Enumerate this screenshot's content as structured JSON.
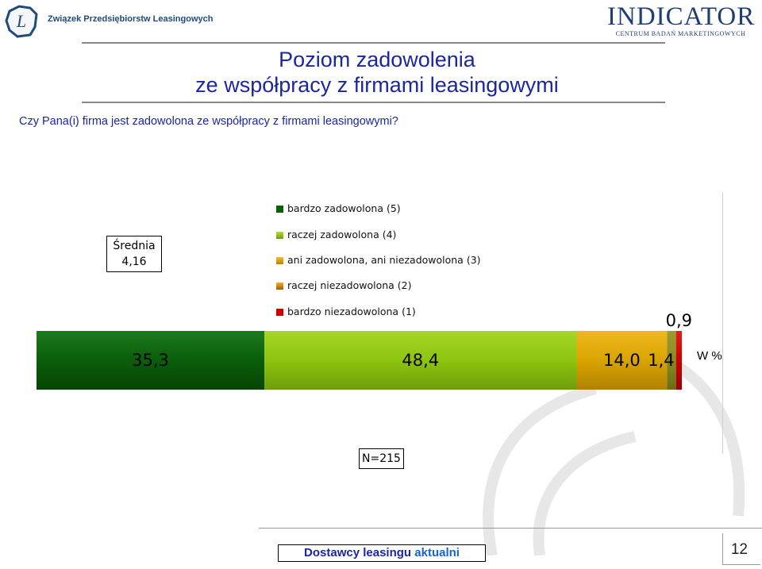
{
  "header": {
    "left_logo_text": "Związek Przedsiębiorstw Leasingowych",
    "left_logo_letter": "L",
    "right_logo_brand": "INDICATOR",
    "right_logo_subtitle": "CENTRUM BADAŃ MARKETINGOWYCH"
  },
  "title_line1": "Poziom zadowolenia",
  "title_line2": "ze współpracy z firmami leasingowymi",
  "question": "Czy Pana(i) firma jest zadowolona ze współpracy z firmami leasingowymi?",
  "mean": {
    "label": "Średnia",
    "value": "4,16"
  },
  "sample": "N=215",
  "unit_label": "W %",
  "colors": {
    "title": "#1a27a0",
    "bardzo_zadowolona": "#0a5e0a",
    "raczej_zadowolona": "#8cc510",
    "ani": "#d9a400",
    "raczej_niezadowolona": "#8b8a20",
    "bardzo_niezadowolona": "#cc0000"
  },
  "chart_data": {
    "type": "bar",
    "orientation": "horizontal-stacked",
    "categories": [
      "Poziom zadowolenia"
    ],
    "series": [
      {
        "name": "bardzo zadowolona (5)",
        "values": [
          35.3
        ],
        "label": "35,3",
        "color": "#0a5e0a"
      },
      {
        "name": "raczej zadowolona (4)",
        "values": [
          48.4
        ],
        "label": "48,4",
        "color": "#8cc510"
      },
      {
        "name": "ani zadowolona, ani niezadowolona (3)",
        "values": [
          14.0
        ],
        "label": "14,0",
        "color": "#d9a400"
      },
      {
        "name": "raczej niezadowolona (2)",
        "values": [
          1.4
        ],
        "label": "1,4",
        "color": "#8b8a20"
      },
      {
        "name": "bardzo niezadowolona (1)",
        "values": [
          0.9
        ],
        "label": "0,9",
        "color": "#cc0000"
      }
    ],
    "legend_order": [
      "bardzo zadowolona (5)",
      "raczej zadowolona (4)",
      "ani zadowolona, ani niezadowolona (3)",
      "raczej niezadowolona (2)",
      "bardzo niezadowolona (1)"
    ],
    "legend_placement": "top",
    "xlim": [
      0,
      100
    ]
  },
  "footer": {
    "product_prefix": "Dostawcy leasingu",
    "product_suffix": "aktualni",
    "page_number": "12"
  }
}
